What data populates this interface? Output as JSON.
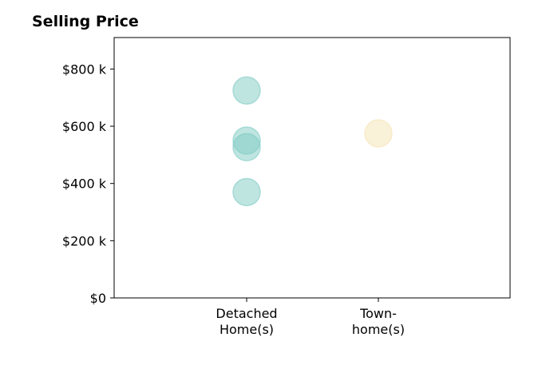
{
  "chart_data": {
    "type": "scatter",
    "title": "Selling Price",
    "xlabel": "",
    "ylabel": "",
    "categories": [
      [
        "Detached",
        "Home(s)"
      ],
      [
        "Town-",
        "home(s)"
      ]
    ],
    "series": [
      {
        "category_index": 0,
        "color": "#80cbc4",
        "values": [
          725000,
          550000,
          527000,
          370000
        ]
      },
      {
        "category_index": 1,
        "color": "#f6e3b4",
        "values": [
          575000
        ]
      }
    ],
    "yticks": [
      0,
      200000,
      400000,
      600000,
      800000
    ],
    "ytick_labels": [
      "$0",
      "$200 k",
      "$400 k",
      "$600 k",
      "$800 k"
    ],
    "ylim": [
      0,
      910000
    ],
    "grid": false,
    "legend": "none"
  }
}
